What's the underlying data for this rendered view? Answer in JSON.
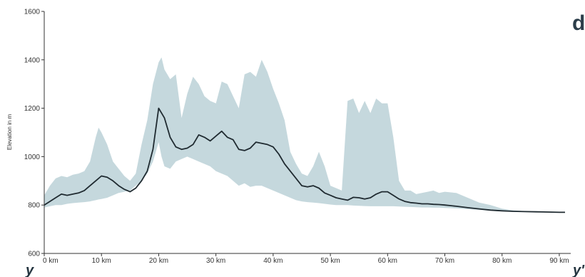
{
  "chart_data": {
    "type": "area",
    "panel_label": "d",
    "ylabel": "Elevation in m",
    "ylim": [
      600,
      1600
    ],
    "xlim": [
      0,
      92
    ],
    "y_ticks": [
      600,
      800,
      1000,
      1200,
      1400,
      1600
    ],
    "x_ticks": [
      0,
      10,
      20,
      30,
      40,
      50,
      60,
      70,
      80,
      90
    ],
    "x_tick_labels": [
      "0 km",
      "10 km",
      "20 km",
      "30 km",
      "40 km",
      "50 km",
      "60 km",
      "70 km",
      "80 km",
      "90 km"
    ],
    "start_label": "y",
    "end_label": "y'",
    "colors": {
      "band": "#c5d8dd",
      "line": "#1f2a30",
      "axis": "#333333"
    },
    "series": [
      {
        "type": "line",
        "x": [
          0,
          1,
          2,
          3,
          4,
          5,
          6,
          7,
          8,
          9,
          10,
          11,
          12,
          13,
          14,
          15,
          16,
          17,
          18,
          19,
          20,
          21,
          22,
          23,
          24,
          25,
          26,
          27,
          28,
          29,
          30,
          31,
          32,
          33,
          34,
          35,
          36,
          37,
          38,
          39,
          40,
          41,
          42,
          43,
          44,
          45,
          46,
          47,
          48,
          49,
          50,
          51,
          52,
          53,
          54,
          55,
          56,
          57,
          58,
          59,
          60,
          61,
          62,
          63,
          64,
          65,
          66,
          67,
          68,
          69,
          70,
          72,
          74,
          76,
          78,
          80,
          82,
          84,
          86,
          88,
          90,
          91
        ],
        "values": [
          800,
          815,
          830,
          845,
          840,
          845,
          850,
          860,
          880,
          900,
          920,
          915,
          900,
          880,
          865,
          855,
          870,
          900,
          940,
          1030,
          1200,
          1160,
          1080,
          1040,
          1030,
          1035,
          1050,
          1090,
          1080,
          1065,
          1085,
          1105,
          1080,
          1070,
          1030,
          1025,
          1035,
          1060,
          1055,
          1050,
          1040,
          1010,
          970,
          940,
          910,
          880,
          875,
          880,
          870,
          850,
          840,
          830,
          825,
          820,
          832,
          830,
          825,
          830,
          845,
          855,
          855,
          840,
          825,
          815,
          810,
          808,
          805,
          805,
          803,
          802,
          800,
          795,
          789,
          784,
          779,
          776,
          774,
          773,
          772,
          771,
          770,
          770
        ]
      },
      {
        "type": "band",
        "x": [
          0,
          1,
          2,
          3,
          4,
          5,
          6,
          7,
          8,
          9,
          9.5,
          10,
          11,
          12,
          13,
          14,
          15,
          16,
          17,
          18,
          19,
          20,
          20.5,
          21,
          22,
          23,
          24,
          25,
          26,
          27,
          28,
          29,
          30,
          31,
          32,
          33,
          34,
          35,
          36,
          37,
          38,
          39,
          40,
          41,
          42,
          43,
          44,
          45,
          46,
          47,
          48,
          49,
          50,
          51,
          52,
          53,
          54,
          55,
          56,
          57,
          58,
          59,
          60,
          61,
          62,
          63,
          64,
          65,
          66,
          67,
          68,
          69,
          70,
          72,
          74,
          76,
          78,
          80,
          82,
          84,
          86,
          88,
          90,
          91
        ],
        "upper": [
          840,
          880,
          910,
          920,
          915,
          925,
          930,
          940,
          980,
          1080,
          1120,
          1100,
          1050,
          980,
          950,
          920,
          900,
          930,
          1050,
          1150,
          1300,
          1390,
          1410,
          1360,
          1320,
          1340,
          1160,
          1260,
          1330,
          1300,
          1250,
          1230,
          1220,
          1310,
          1300,
          1250,
          1200,
          1340,
          1350,
          1330,
          1400,
          1350,
          1280,
          1220,
          1150,
          1020,
          970,
          930,
          920,
          960,
          1020,
          960,
          880,
          870,
          860,
          1230,
          1240,
          1180,
          1230,
          1180,
          1240,
          1220,
          1220,
          1080,
          900,
          860,
          860,
          845,
          850,
          855,
          860,
          850,
          855,
          850,
          830,
          810,
          800,
          785,
          778,
          775,
          772,
          772,
          770,
          770
        ],
        "lower": [
          790,
          795,
          800,
          800,
          805,
          808,
          810,
          812,
          815,
          820,
          823,
          825,
          830,
          840,
          850,
          855,
          860,
          880,
          900,
          930,
          980,
          1060,
          1000,
          960,
          950,
          980,
          990,
          1000,
          990,
          980,
          970,
          960,
          940,
          930,
          920,
          900,
          880,
          890,
          875,
          880,
          880,
          870,
          860,
          850,
          840,
          830,
          820,
          815,
          812,
          810,
          808,
          805,
          802,
          800,
          800,
          800,
          798,
          797,
          796,
          795,
          795,
          795,
          795,
          795,
          794,
          793,
          792,
          791,
          790,
          790,
          789,
          789,
          788,
          786,
          783,
          780,
          776,
          774,
          772,
          771,
          770,
          770,
          770,
          770
        ]
      }
    ]
  }
}
